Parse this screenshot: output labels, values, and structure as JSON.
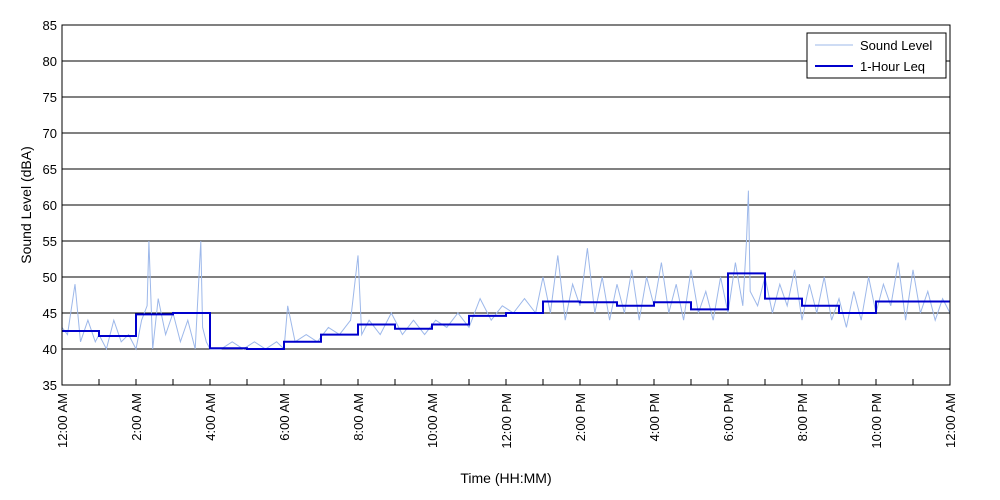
{
  "chart_data": {
    "type": "line",
    "xlabel": "Time (HH:MM)",
    "ylabel": "Sound Level (dBA)",
    "ylim": [
      35,
      85
    ],
    "xlim_hours": [
      0,
      24
    ],
    "y_ticks": [
      "35",
      "40",
      "45",
      "50",
      "55",
      "60",
      "65",
      "70",
      "75",
      "80",
      "85"
    ],
    "x_ticks": [
      "12:00 AM",
      "2:00 AM",
      "4:00 AM",
      "6:00 AM",
      "8:00 AM",
      "10:00 AM",
      "12:00 PM",
      "2:00 PM",
      "4:00 PM",
      "6:00 PM",
      "8:00 PM",
      "10:00 PM",
      "12:00 AM"
    ],
    "grid": "horizontal",
    "legend_position": "top-right",
    "series": [
      {
        "name": "Sound Level",
        "color": "#9db8ea",
        "x_hours": [
          0,
          0.15,
          0.35,
          0.5,
          0.7,
          0.9,
          1.0,
          1.2,
          1.4,
          1.6,
          1.8,
          2.0,
          2.15,
          2.3,
          2.35,
          2.45,
          2.6,
          2.8,
          3.0,
          3.2,
          3.4,
          3.6,
          3.75,
          3.8,
          3.9,
          4.0,
          4.3,
          4.6,
          4.9,
          5.2,
          5.5,
          5.8,
          6.0,
          6.1,
          6.3,
          6.6,
          6.9,
          7.2,
          7.5,
          7.8,
          8.0,
          8.1,
          8.3,
          8.6,
          8.9,
          9.2,
          9.5,
          9.8,
          10.1,
          10.4,
          10.7,
          11.0,
          11.3,
          11.6,
          11.9,
          12.2,
          12.5,
          12.8,
          13.0,
          13.2,
          13.4,
          13.6,
          13.8,
          14.0,
          14.2,
          14.4,
          14.6,
          14.8,
          15.0,
          15.2,
          15.4,
          15.6,
          15.8,
          16.0,
          16.2,
          16.4,
          16.6,
          16.8,
          17.0,
          17.2,
          17.4,
          17.6,
          17.8,
          18.0,
          18.2,
          18.4,
          18.5,
          18.55,
          18.6,
          18.8,
          19.0,
          19.2,
          19.4,
          19.6,
          19.8,
          20.0,
          20.2,
          20.4,
          20.6,
          20.8,
          21.0,
          21.2,
          21.4,
          21.6,
          21.8,
          22.0,
          22.2,
          22.4,
          22.6,
          22.8,
          23.0,
          23.2,
          23.4,
          23.6,
          23.8,
          24.0
        ],
        "values": [
          43,
          42,
          49,
          41,
          44,
          41,
          42,
          40,
          44,
          41,
          42,
          40,
          44,
          46,
          55,
          40,
          47,
          42,
          45,
          41,
          44,
          40,
          55,
          43,
          41,
          40,
          40,
          41,
          40,
          41,
          40,
          41,
          40,
          46,
          41,
          42,
          41,
          43,
          42,
          44,
          53,
          42,
          44,
          42,
          45,
          42,
          44,
          42,
          44,
          43,
          45,
          43,
          47,
          44,
          46,
          45,
          47,
          45,
          50,
          45,
          53,
          44,
          49,
          46,
          54,
          45,
          50,
          44,
          49,
          45,
          51,
          44,
          50,
          46,
          52,
          45,
          49,
          44,
          51,
          45,
          48,
          44,
          50,
          45,
          52,
          46,
          55,
          62,
          48,
          46,
          50,
          45,
          49,
          46,
          51,
          44,
          49,
          45,
          50,
          44,
          47,
          43,
          48,
          44,
          50,
          45,
          49,
          46,
          52,
          44,
          51,
          45,
          48,
          44,
          47,
          45
        ]
      },
      {
        "name": "1-Hour Leq",
        "color": "#0000cc",
        "hourly": [
          42.5,
          41.8,
          44.8,
          45.0,
          40.1,
          40.0,
          41.0,
          42.0,
          43.4,
          42.8,
          43.4,
          44.6,
          45.0,
          46.6,
          46.5,
          46.0,
          46.5,
          45.5,
          50.5,
          47.0,
          46.0,
          45.0,
          46.6,
          46.6
        ]
      }
    ]
  }
}
